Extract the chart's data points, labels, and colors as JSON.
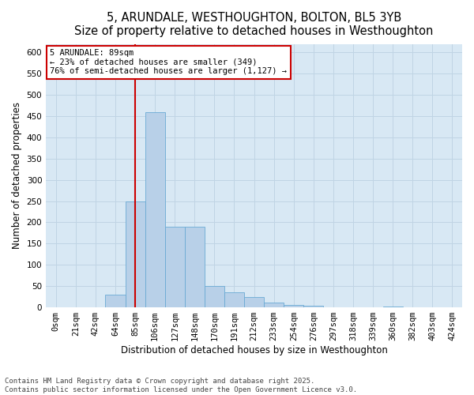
{
  "title_line1": "5, ARUNDALE, WESTHOUGHTON, BOLTON, BL5 3YB",
  "title_line2": "Size of property relative to detached houses in Westhoughton",
  "xlabel": "Distribution of detached houses by size in Westhoughton",
  "ylabel": "Number of detached properties",
  "bar_color": "#b8d0e8",
  "bar_edge_color": "#6aaad4",
  "grid_color": "#c0d4e4",
  "background_color": "#d8e8f4",
  "categories": [
    "0sqm",
    "21sqm",
    "42sqm",
    "64sqm",
    "85sqm",
    "106sqm",
    "127sqm",
    "148sqm",
    "170sqm",
    "191sqm",
    "212sqm",
    "233sqm",
    "254sqm",
    "276sqm",
    "297sqm",
    "318sqm",
    "339sqm",
    "360sqm",
    "382sqm",
    "403sqm",
    "424sqm"
  ],
  "values": [
    0,
    0,
    0,
    30,
    250,
    460,
    190,
    190,
    50,
    35,
    25,
    12,
    5,
    3,
    1,
    0,
    0,
    2,
    0,
    0,
    1
  ],
  "ylim": [
    0,
    620
  ],
  "yticks": [
    0,
    50,
    100,
    150,
    200,
    250,
    300,
    350,
    400,
    450,
    500,
    550,
    600
  ],
  "vline_x": 4.0,
  "vline_color": "#cc0000",
  "annotation_line1": "5 ARUNDALE: 89sqm",
  "annotation_line2": "← 23% of detached houses are smaller (349)",
  "annotation_line3": "76% of semi-detached houses are larger (1,127) →",
  "annotation_box_facecolor": "#ffffff",
  "annotation_box_edgecolor": "#cc0000",
  "footer_line1": "Contains HM Land Registry data © Crown copyright and database right 2025.",
  "footer_line2": "Contains public sector information licensed under the Open Government Licence v3.0.",
  "title_fontsize": 10.5,
  "axis_label_fontsize": 8.5,
  "tick_fontsize": 7.5,
  "annotation_fontsize": 7.5,
  "footer_fontsize": 6.5
}
